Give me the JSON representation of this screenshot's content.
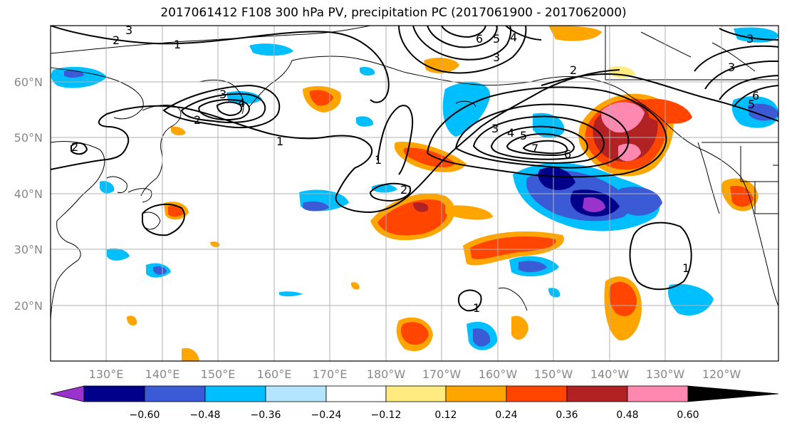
{
  "title": "2017061412 F108 300 hPa PV, precipitation PC (2017061900 - 2017062000)",
  "map": {
    "lon_labels": [
      "130°E",
      "140°E",
      "150°E",
      "160°E",
      "170°E",
      "180°W",
      "170°W",
      "160°W",
      "150°W",
      "140°W",
      "130°W",
      "120°W"
    ],
    "lat_labels": [
      "60°N",
      "50°N",
      "40°N",
      "30°N",
      "20°N"
    ],
    "pv_contour_labels": [
      "1",
      "2",
      "3",
      "4",
      "5",
      "6",
      "7"
    ]
  },
  "colorbar": {
    "tick_labels": [
      "−0.60",
      "−0.48",
      "−0.36",
      "−0.24",
      "−0.12",
      "0.12",
      "0.24",
      "0.36",
      "0.48",
      "0.60"
    ],
    "colors": [
      "#9933cc",
      "#00008b",
      "#3b5bd6",
      "#00bfff",
      "#b3e5ff",
      "#ffffff",
      "#ffeb80",
      "#ffa500",
      "#ff4500",
      "#b22222",
      "#ff88b0"
    ]
  }
}
